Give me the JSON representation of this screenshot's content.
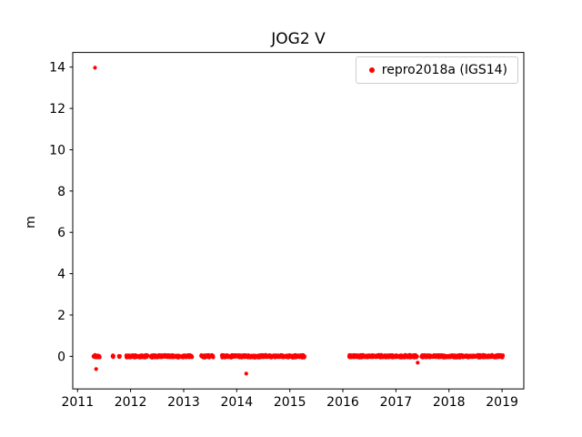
{
  "chart_data": {
    "type": "scatter",
    "title": "JOG2 V",
    "xlabel": "",
    "ylabel": "m",
    "xlim": [
      2010.91,
      2019.41
    ],
    "ylim": [
      -1.58,
      14.71
    ],
    "xticks": [
      2011,
      2012,
      2013,
      2014,
      2015,
      2016,
      2017,
      2018,
      2019
    ],
    "yticks": [
      0,
      2,
      4,
      6,
      8,
      10,
      12,
      14
    ],
    "grid": false,
    "legend_position": "upper right",
    "legend": {
      "label": "repro2018a (IGS14)",
      "marker_color": "#ff0000"
    },
    "series": [
      {
        "name": "repro2018a (IGS14)",
        "color": "#ff0000",
        "marker": "dot",
        "description": "Dense daily time series clustered around 0 m, with gaps and a few outliers",
        "baseline_value": 0,
        "scatter_amplitude": 0.07,
        "sample_interval_years": 0.0035,
        "segments": [
          [
            2011.3,
            2011.42
          ],
          [
            2011.66,
            2011.68
          ],
          [
            2011.78,
            2011.8
          ],
          [
            2011.92,
            2012.32
          ],
          [
            2012.38,
            2012.93
          ],
          [
            2012.97,
            2013.16
          ],
          [
            2013.33,
            2013.56
          ],
          [
            2013.72,
            2015.28
          ],
          [
            2016.12,
            2017.4
          ],
          [
            2017.48,
            2019.02
          ]
        ],
        "outliers": [
          [
            2011.33,
            13.97
          ],
          [
            2011.35,
            -0.62
          ],
          [
            2014.18,
            -0.84
          ],
          [
            2017.41,
            -0.31
          ]
        ]
      }
    ]
  }
}
